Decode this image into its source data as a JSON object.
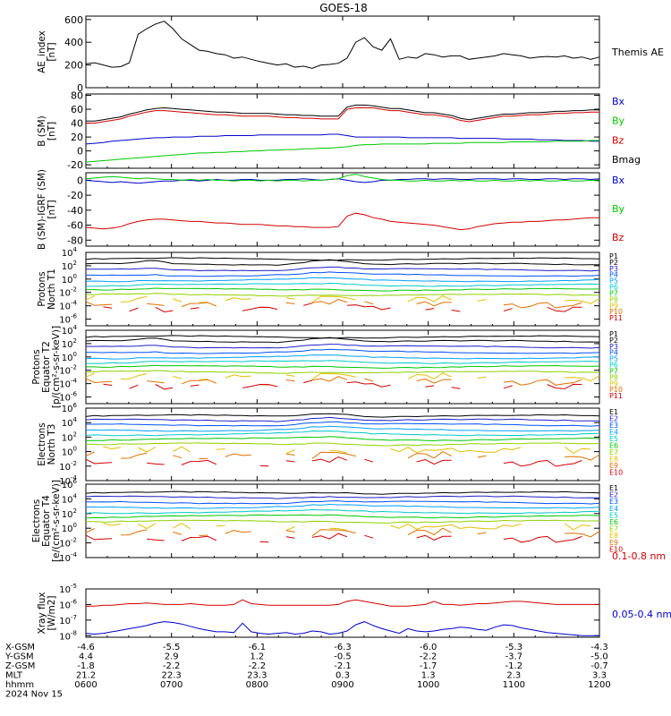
{
  "title": "GOES-18",
  "colors": {
    "p_series": [
      "#000000",
      "#000000",
      "#1e1ec8",
      "#0050ff",
      "#00a0ff",
      "#00c8c8",
      "#00c800",
      "#90d000",
      "#e0c000",
      "#e07000",
      "#d00000"
    ],
    "e_series": [
      "#000000",
      "#000000",
      "#1e1ec8",
      "#0050ff",
      "#00a0ff",
      "#00c8c8",
      "#00c800",
      "#90d000",
      "#e0c000",
      "#e07000",
      "#d00000"
    ]
  },
  "chart_data": [
    {
      "id": "ae",
      "type": "line",
      "ylabel": [
        "AE_index",
        "[nT]"
      ],
      "yticks": [
        "600",
        "400",
        "200",
        "0"
      ],
      "ylim": [
        0,
        630
      ],
      "series": [
        {
          "name": "Themis AE",
          "color": "#000000",
          "values": [
            210,
            220,
            200,
            180,
            185,
            220,
            470,
            520,
            560,
            585,
            520,
            430,
            380,
            330,
            320,
            300,
            290,
            260,
            270,
            250,
            230,
            215,
            200,
            210,
            180,
            190,
            170,
            200,
            205,
            215,
            260,
            400,
            440,
            360,
            330,
            430,
            250,
            270,
            260,
            300,
            290,
            270,
            280,
            280,
            250,
            260,
            270,
            280,
            300,
            290,
            280,
            260,
            270,
            275,
            270,
            280,
            260,
            270,
            250,
            270
          ]
        }
      ]
    },
    {
      "id": "b",
      "type": "line",
      "ylabel": [
        "B (SM)",
        "[nT]"
      ],
      "yticks": [
        "80",
        "60",
        "40",
        "20",
        "0",
        "-20"
      ],
      "ylim": [
        -25,
        82
      ],
      "series": [
        {
          "name": "Bx",
          "color": "#0000c8",
          "values": [
            10,
            11,
            12,
            14,
            15,
            16,
            17,
            18,
            19,
            19,
            20,
            20,
            20,
            21,
            21,
            21,
            22,
            22,
            22,
            22,
            23,
            23,
            23,
            23,
            23,
            23,
            23,
            23,
            24,
            24,
            22,
            20,
            20,
            20,
            20,
            20,
            20,
            19,
            19,
            19,
            19,
            19,
            19,
            18,
            18,
            18,
            18,
            18,
            17,
            17,
            17,
            17,
            16,
            16,
            16,
            15,
            15,
            15,
            14,
            14
          ]
        },
        {
          "name": "By",
          "color": "#00c800",
          "values": [
            -16,
            -15,
            -14,
            -13,
            -12,
            -11,
            -10,
            -9,
            -8,
            -7,
            -6,
            -5,
            -4,
            -3,
            -3,
            -2,
            -2,
            -1,
            -1,
            0,
            0,
            1,
            1,
            2,
            2,
            3,
            3,
            4,
            4,
            5,
            6,
            8,
            9,
            9,
            10,
            10,
            10,
            10,
            10,
            10,
            11,
            11,
            11,
            11,
            12,
            12,
            12,
            12,
            12,
            13,
            13,
            13,
            13,
            13,
            14,
            14,
            14,
            14,
            15,
            15
          ]
        },
        {
          "name": "Bz",
          "color": "#d00000",
          "values": [
            40,
            40,
            42,
            44,
            46,
            50,
            53,
            56,
            58,
            58,
            57,
            56,
            55,
            54,
            53,
            52,
            52,
            51,
            50,
            50,
            50,
            50,
            49,
            48,
            48,
            47,
            47,
            46,
            46,
            46,
            60,
            62,
            62,
            62,
            60,
            58,
            58,
            56,
            54,
            52,
            52,
            50,
            48,
            44,
            42,
            44,
            46,
            48,
            50,
            50,
            51,
            52,
            52,
            53,
            54,
            54,
            55,
            55,
            56,
            56
          ]
        },
        {
          "name": "Bmag",
          "color": "#000000",
          "values": [
            43,
            43,
            45,
            47,
            49,
            53,
            56,
            59,
            61,
            62,
            61,
            60,
            59,
            58,
            57,
            56,
            56,
            55,
            54,
            54,
            54,
            54,
            53,
            52,
            52,
            51,
            51,
            50,
            50,
            50,
            63,
            66,
            66,
            65,
            63,
            61,
            61,
            59,
            57,
            55,
            55,
            53,
            51,
            47,
            45,
            47,
            49,
            51,
            53,
            53,
            54,
            55,
            55,
            56,
            57,
            57,
            58,
            58,
            59,
            59
          ]
        }
      ]
    },
    {
      "id": "bigrf",
      "type": "line",
      "ylabel": [
        "B (SM)-IGRF (SM)",
        "[nT]"
      ],
      "yticks": [
        "0",
        "-20",
        "-40",
        "-60",
        "-80"
      ],
      "ylim": [
        -88,
        10
      ],
      "series": [
        {
          "name": "Bx",
          "color": "#0000c8",
          "values": [
            0,
            -1,
            -2,
            -3,
            -2,
            -3,
            -4,
            -3,
            -2,
            -1,
            -1,
            0,
            0,
            -1,
            0,
            1,
            0,
            0,
            1,
            1,
            0,
            0,
            0,
            1,
            1,
            2,
            1,
            0,
            1,
            2,
            0,
            -2,
            -3,
            -2,
            0,
            0,
            1,
            1,
            2,
            2,
            1,
            2,
            2,
            1,
            1,
            2,
            2,
            2,
            1,
            2,
            2,
            1,
            1,
            2,
            2,
            1,
            2,
            2,
            1,
            2
          ]
        },
        {
          "name": "By",
          "color": "#00c800",
          "values": [
            2,
            3,
            4,
            5,
            4,
            3,
            2,
            3,
            2,
            1,
            1,
            0,
            1,
            0,
            1,
            0,
            0,
            -1,
            0,
            0,
            -1,
            0,
            -1,
            0,
            0,
            -1,
            0,
            0,
            1,
            2,
            6,
            8,
            5,
            3,
            1,
            0,
            0,
            -1,
            -1,
            0,
            -1,
            -1,
            0,
            -1,
            0,
            -1,
            -1,
            0,
            -1,
            -1,
            0,
            -1,
            0,
            -1,
            -1,
            0,
            -1,
            -1,
            0,
            -1
          ]
        },
        {
          "name": "Bz",
          "color": "#d00000",
          "values": [
            -63,
            -64,
            -65,
            -64,
            -62,
            -58,
            -55,
            -53,
            -52,
            -52,
            -53,
            -54,
            -55,
            -55,
            -56,
            -57,
            -57,
            -58,
            -59,
            -59,
            -59,
            -60,
            -61,
            -61,
            -62,
            -62,
            -63,
            -63,
            -63,
            -62,
            -48,
            -44,
            -46,
            -50,
            -52,
            -55,
            -56,
            -57,
            -58,
            -59,
            -60,
            -62,
            -64,
            -66,
            -65,
            -62,
            -60,
            -58,
            -57,
            -56,
            -56,
            -55,
            -55,
            -54,
            -53,
            -53,
            -52,
            -51,
            -50,
            -50
          ]
        }
      ]
    },
    {
      "id": "p1",
      "type": "line",
      "log": true,
      "ylabel": [
        "Protons",
        "North T1"
      ],
      "ylim": [
        -7,
        4
      ],
      "ytick_exps": [
        4,
        2,
        0,
        -2,
        -4,
        -6
      ],
      "legend": [
        "P1",
        "P2",
        "P3",
        "P4",
        "P5",
        "P6",
        "P7",
        "P8",
        "P9",
        "P10",
        "P11"
      ],
      "levels": [
        3.0,
        2.2,
        1.4,
        0.6,
        -0.2,
        -0.9,
        -1.6,
        -2.4,
        -3.1,
        -3.8,
        -4.5
      ],
      "bump": [
        0,
        0.8,
        0.4,
        0.3,
        0.25,
        0.2,
        0.15,
        0.15,
        0.2,
        0.3,
        0.4
      ]
    },
    {
      "id": "p2",
      "type": "line",
      "log": true,
      "ylabel": [
        "Protons",
        "Equator T2",
        "[p/(cm²-s-sr-keV)]"
      ],
      "ylim": [
        -7,
        4
      ],
      "ytick_exps": [
        4,
        2,
        0,
        -2,
        -4,
        -6
      ],
      "legend": [
        "P1",
        "P2",
        "P3",
        "P4",
        "P5",
        "P6",
        "P7",
        "P8",
        "P9",
        "P10",
        "P11"
      ],
      "levels": [
        3.0,
        2.3,
        1.5,
        0.7,
        -0.1,
        -0.8,
        -1.5,
        -2.3,
        -3.0,
        -3.7,
        -4.4
      ],
      "bump": [
        0,
        0.7,
        0.4,
        0.3,
        0.25,
        0.2,
        0.15,
        0.15,
        0.2,
        0.3,
        0.4
      ]
    },
    {
      "id": "e1",
      "type": "line",
      "log": true,
      "ylabel": [
        "Electrons",
        "North T3"
      ],
      "ylim": [
        -4,
        6
      ],
      "ytick_exps": [
        6,
        4,
        2,
        0,
        -2,
        -4
      ],
      "legend": [
        "E1",
        "E2",
        "E3",
        "E4",
        "E5",
        "E6",
        "E7",
        "E8",
        "E9",
        "E10"
      ],
      "levels": [
        4.9,
        4.3,
        3.7,
        3.0,
        2.4,
        1.7,
        1.0,
        0.2,
        -0.6,
        -1.5
      ],
      "bump": [
        0.5,
        0.5,
        0.4,
        0.35,
        0.3,
        0.3,
        0.25,
        0.25,
        0.2,
        0.3
      ]
    },
    {
      "id": "e2",
      "type": "line",
      "log": true,
      "ylabel": [
        "Electrons",
        "Equator T4",
        "[e/(cm²-s-sr-keV)]"
      ],
      "ylim": [
        -4,
        6
      ],
      "ytick_exps": [
        6,
        4,
        2,
        0,
        -2,
        -4
      ],
      "legend": [
        "E1",
        "E2",
        "E3",
        "E4",
        "E5",
        "E6",
        "E7",
        "E8",
        "E9",
        "E10"
      ],
      "levels": [
        4.8,
        4.2,
        3.5,
        2.9,
        2.2,
        1.6,
        0.9,
        0.2,
        -0.6,
        -1.4
      ],
      "bump": [
        0.2,
        0.2,
        0.2,
        0.2,
        0.15,
        0.15,
        0.1,
        0.1,
        0.1,
        0.2
      ]
    },
    {
      "id": "xray",
      "type": "line",
      "log": true,
      "ylabel": [
        "Xray flux",
        "[W/m2]"
      ],
      "ylim": [
        -8.1,
        -5
      ],
      "ytick_exps": [
        -5,
        -6,
        -7,
        -8
      ],
      "series": [
        {
          "name": "0.1-0.8 nm",
          "color": "#d00000",
          "values": [
            -6.1,
            -6.1,
            -6.05,
            -6.05,
            -6.0,
            -5.95,
            -5.95,
            -5.9,
            -5.95,
            -6.0,
            -6.0,
            -6.0,
            -5.95,
            -6.0,
            -6.05,
            -6.05,
            -6.05,
            -6.0,
            -5.7,
            -5.95,
            -6.0,
            -6.05,
            -6.05,
            -6.05,
            -6.05,
            -6.05,
            -6.05,
            -6.05,
            -6.05,
            -6.0,
            -5.8,
            -5.7,
            -5.8,
            -5.9,
            -6.0,
            -6.1,
            -6.1,
            -6.1,
            -6.05,
            -6.0,
            -5.8,
            -6.0,
            -6.0,
            -6.05,
            -6.0,
            -5.95,
            -5.95,
            -5.9,
            -5.85,
            -5.8,
            -5.8,
            -5.85,
            -5.9,
            -5.95,
            -6.0,
            -6.0,
            -6.0,
            -6.0,
            -6.0,
            -6.0
          ]
        },
        {
          "name": "0.05-0.4 nm",
          "color": "#0000c8",
          "values": [
            -7.85,
            -7.9,
            -7.85,
            -7.75,
            -7.65,
            -7.55,
            -7.45,
            -7.35,
            -7.2,
            -7.1,
            -7.15,
            -7.25,
            -7.4,
            -7.55,
            -7.65,
            -7.75,
            -7.75,
            -7.8,
            -7.2,
            -7.75,
            -7.85,
            -7.9,
            -7.85,
            -7.8,
            -7.9,
            -7.85,
            -7.7,
            -7.75,
            -7.9,
            -7.85,
            -7.7,
            -7.3,
            -7.1,
            -7.35,
            -7.55,
            -7.7,
            -7.85,
            -7.55,
            -7.7,
            -7.75,
            -7.7,
            -7.6,
            -7.55,
            -7.45,
            -7.5,
            -7.6,
            -7.65,
            -7.45,
            -7.3,
            -7.35,
            -7.5,
            -7.6,
            -7.7,
            -7.8,
            -7.85,
            -7.9,
            -7.95,
            -8.0,
            -8.0,
            -8.0
          ]
        }
      ]
    }
  ],
  "x_axis": {
    "rows": [
      {
        "label": "X-GSM",
        "values": [
          "-4.6",
          "-5.5",
          "-6.1",
          "-6.3",
          "-6.0",
          "-5.3",
          "-4.3"
        ]
      },
      {
        "label": "Y-GSM",
        "values": [
          "4.4",
          "2.9",
          "1.2",
          "-0.5",
          "-2.2",
          "-3.7",
          "-5.0"
        ]
      },
      {
        "label": "Z-GSM",
        "values": [
          "-1.8",
          "-2.2",
          "-2.2",
          "-2.1",
          "-1.7",
          "-1.2",
          "-0.7"
        ]
      },
      {
        "label": "MLT",
        "values": [
          "21.2",
          "22.3",
          "23.3",
          "0.3",
          "1.3",
          "2.3",
          "3.3"
        ]
      },
      {
        "label": "hhmm",
        "values": [
          "0600",
          "0700",
          "0800",
          "0900",
          "1000",
          "1100",
          "1200"
        ]
      }
    ],
    "date": "2024 Nov 15"
  }
}
